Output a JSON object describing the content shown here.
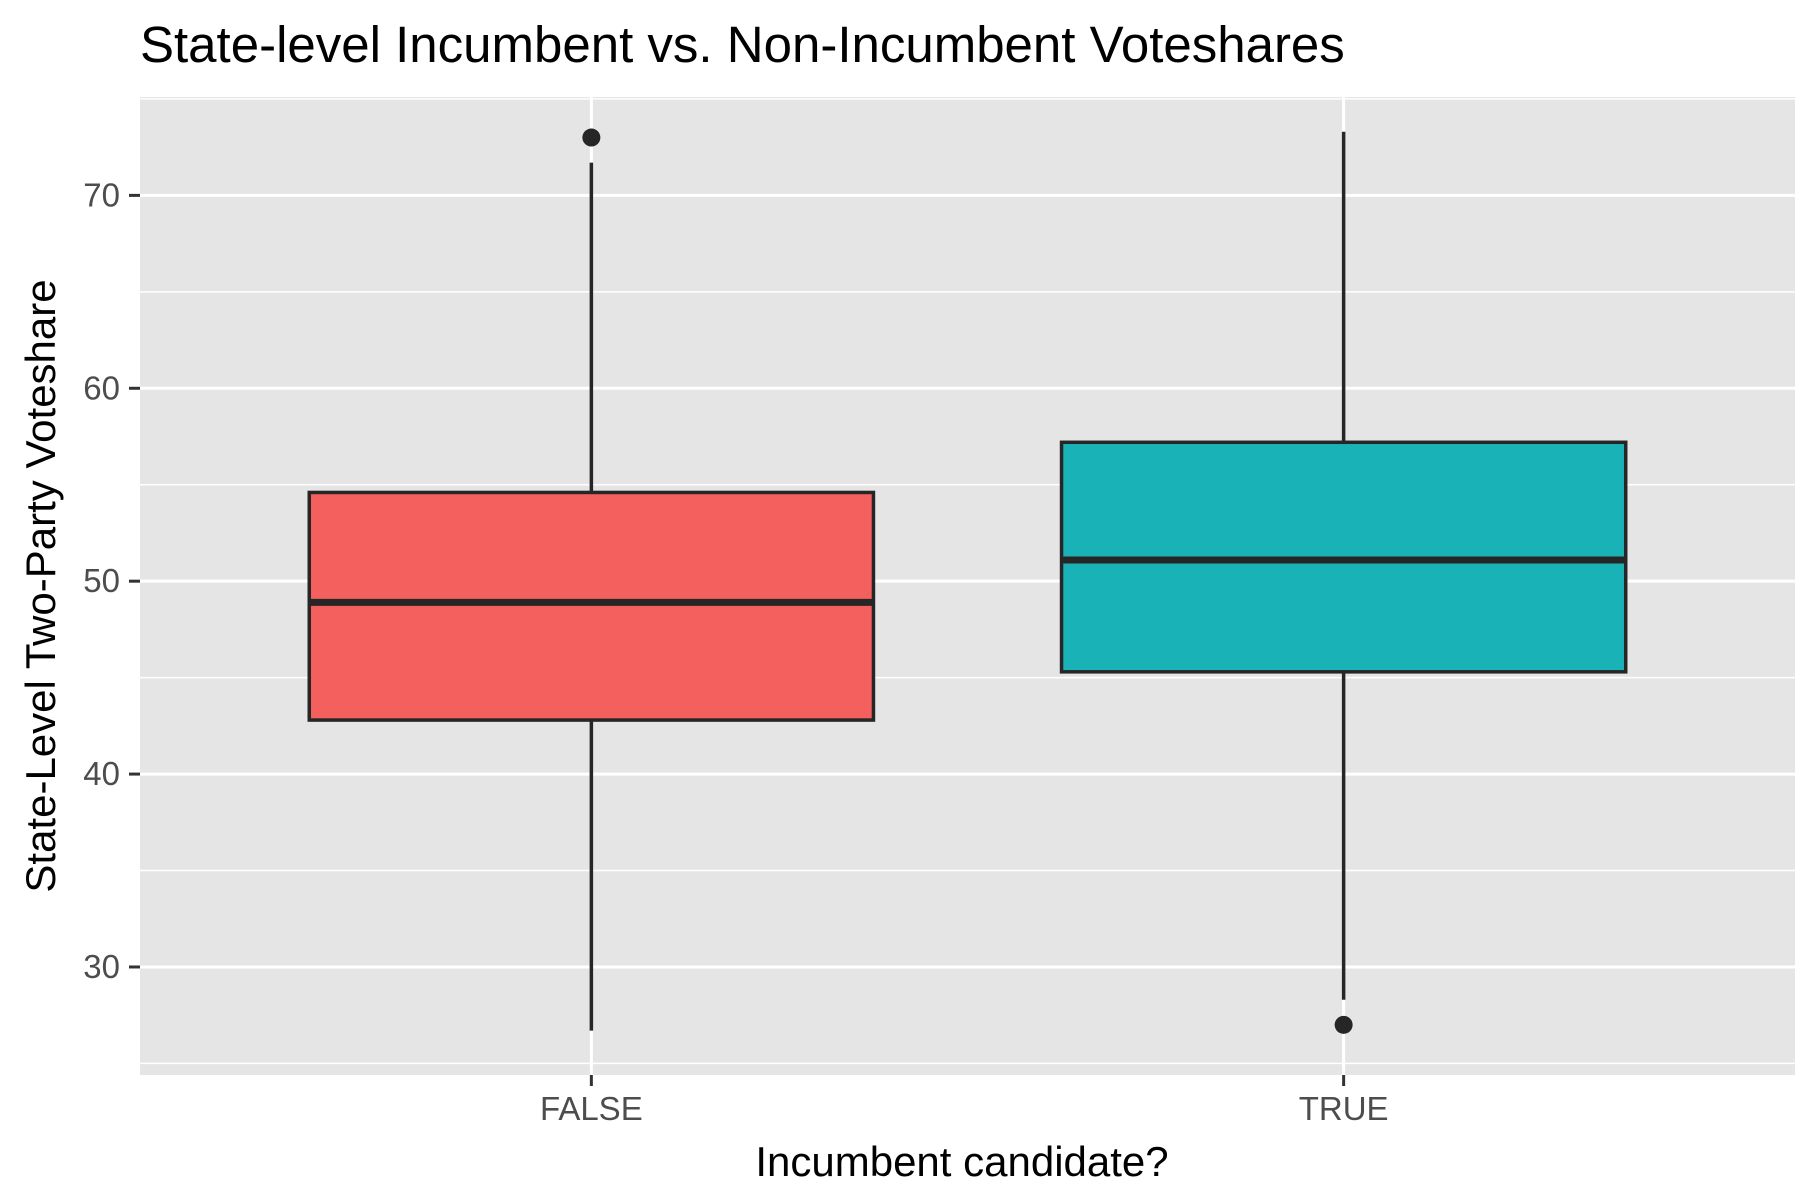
{
  "chart_data": {
    "type": "boxplot",
    "title": "State-level Incumbent vs. Non-Incumbent Voteshares",
    "xlabel": "Incumbent candidate?",
    "ylabel": "State-Level Two-Party Voteshare",
    "categories": [
      "FALSE",
      "TRUE"
    ],
    "boxes": [
      {
        "category": "FALSE",
        "whisker_low": 26.7,
        "q1": 42.8,
        "median": 48.9,
        "q3": 54.6,
        "whisker_high": 71.7,
        "outliers": [
          73.0
        ],
        "fill": "#F3605D"
      },
      {
        "category": "TRUE",
        "whisker_low": 28.3,
        "q1": 45.3,
        "median": 51.1,
        "q3": 57.2,
        "whisker_high": 73.3,
        "outliers": [
          27.0
        ],
        "fill": "#19B2B7"
      }
    ],
    "y_ticks": [
      30,
      40,
      50,
      60,
      70
    ],
    "ylim": [
      24.4,
      75.1
    ],
    "grid": true,
    "legend": "none",
    "colors": {
      "panel_background": "#E5E5E5",
      "grid": "#FFFFFF",
      "outline": "#262626",
      "tick_text": "#4D4D4D"
    }
  }
}
